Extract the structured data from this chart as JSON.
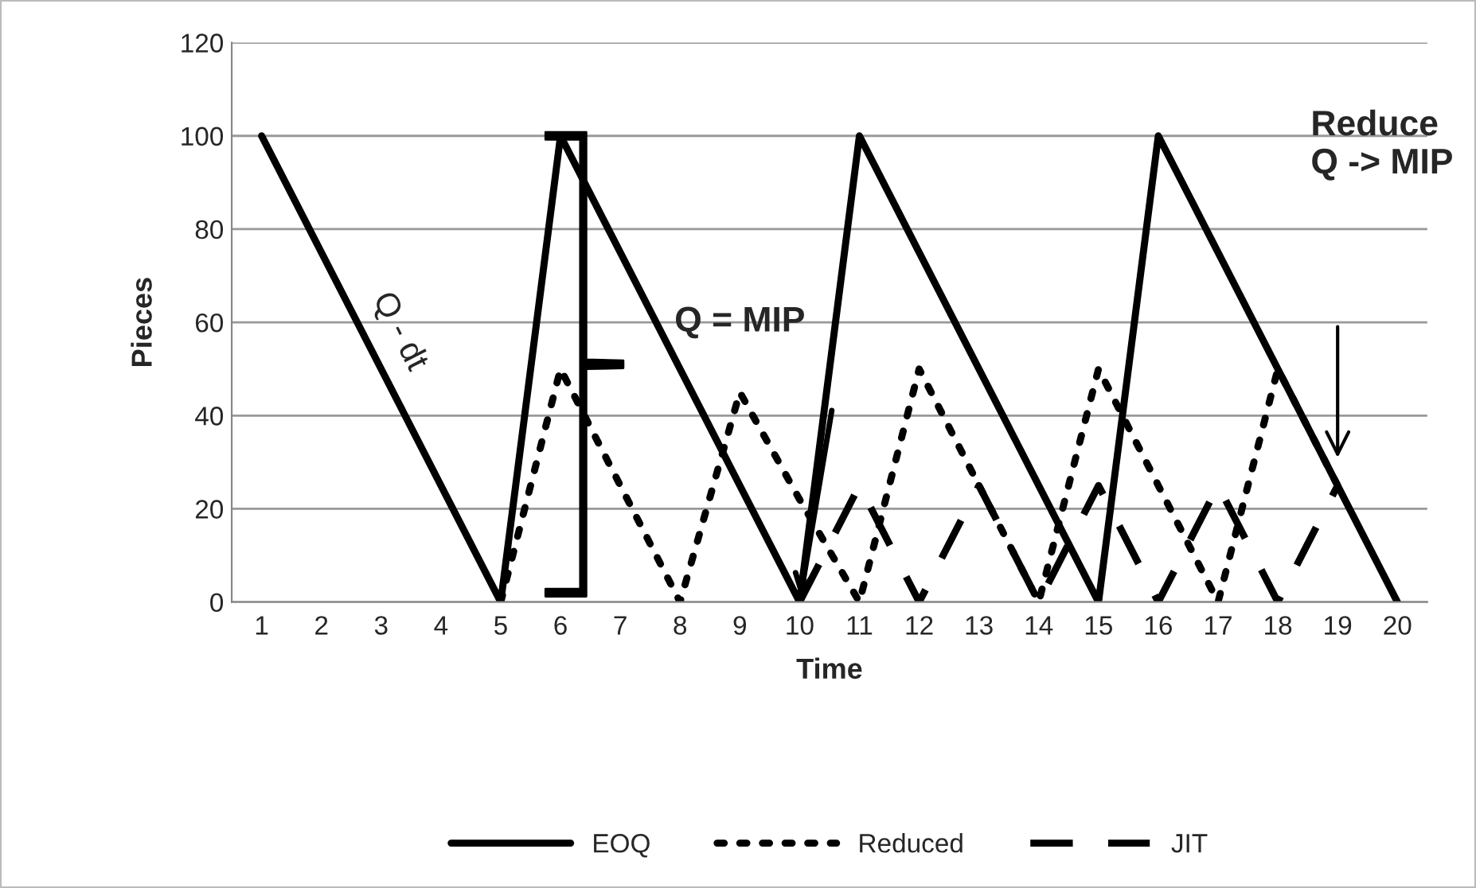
{
  "chart_data": {
    "type": "line",
    "xlabel": "Time",
    "ylabel": "Pieces",
    "categories": [
      "1",
      "2",
      "3",
      "4",
      "5",
      "6",
      "7",
      "8",
      "9",
      "10",
      "11",
      "12",
      "13",
      "14",
      "15",
      "16",
      "17",
      "18",
      "19",
      "20"
    ],
    "series": [
      {
        "name": "EOQ",
        "color": "#000000",
        "line_style": "solid",
        "values": [
          100,
          75,
          50,
          25,
          0,
          100,
          75,
          50,
          25,
          0,
          100,
          75,
          50,
          25,
          0,
          100,
          75,
          50,
          25,
          0
        ]
      },
      {
        "name": "Reduced",
        "color": "#000000",
        "line_style": "dotted",
        "values": [
          null,
          null,
          null,
          null,
          0,
          50,
          25,
          0,
          45,
          22,
          0,
          50,
          25,
          0,
          50,
          25,
          0,
          50,
          25,
          null
        ]
      },
      {
        "name": "JIT",
        "color": "#000000",
        "line_style": "dashed",
        "values": [
          null,
          null,
          null,
          null,
          null,
          null,
          null,
          null,
          null,
          0,
          25,
          0,
          25,
          0,
          25,
          0,
          25,
          0,
          25,
          null
        ]
      }
    ],
    "ylim": [
      0,
      120
    ],
    "yticks": [
      0,
      20,
      40,
      60,
      80,
      100,
      120
    ],
    "grid": "y",
    "legend": "bottom",
    "marker": "none",
    "annotations": [
      "Q - dt",
      "Q = MIP",
      "Reduce\nQ -> MIP"
    ]
  }
}
